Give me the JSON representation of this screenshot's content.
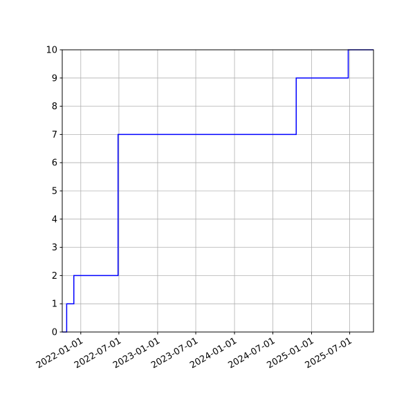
{
  "chart_data": {
    "type": "line",
    "step": "post",
    "title": "",
    "xlabel": "",
    "ylabel": "",
    "x_is_date": true,
    "xlim": [
      "2021-10-05",
      "2025-10-22"
    ],
    "ylim": [
      0,
      10
    ],
    "grid": true,
    "line_color": "#0000ff",
    "x_tick_labels": [
      "2022-01-01",
      "2022-07-01",
      "2023-01-01",
      "2023-07-01",
      "2024-01-01",
      "2024-07-01",
      "2025-01-01",
      "2025-07-01"
    ],
    "y_tick_labels": [
      "0",
      "1",
      "2",
      "3",
      "4",
      "5",
      "6",
      "7",
      "8",
      "9",
      "10"
    ],
    "series": [
      {
        "x": [
          "2021-10-05",
          "2021-10-26",
          "2021-11-29",
          "2022-06-27",
          "2024-10-20",
          "2025-06-24"
        ],
        "y": [
          0,
          1,
          2,
          7,
          9,
          10
        ]
      }
    ]
  }
}
